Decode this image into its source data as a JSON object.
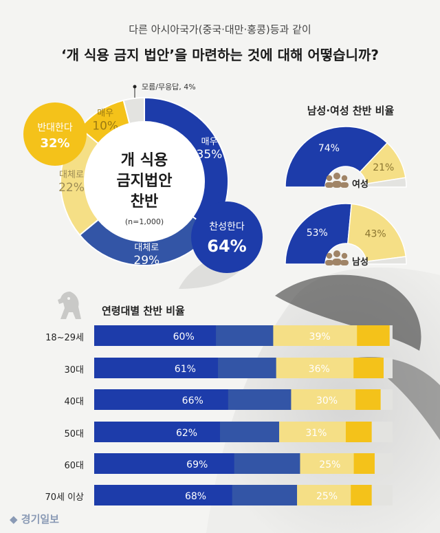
{
  "header": {
    "subtitle": "다른 아시아국가(중국·대만·홍콩)등과 같이",
    "title": "‘개 식용 금지 법안’을 마련하는 것에 대해 어떻습니까?"
  },
  "donut": {
    "center_line1": "개 식용",
    "center_line2": "금지법안",
    "center_line3": "찬반",
    "n_label": "(n=1,000)",
    "support_label": "찬성한다",
    "support_value": "64%",
    "oppose_label": "반대한다",
    "oppose_value": "32%",
    "unknown_callout": "모름/무응답, 4%"
  },
  "gender": {
    "title": "남성·여성 찬반 비율",
    "female_label": "여성",
    "male_label": "남성"
  },
  "age_section": {
    "title": "연령대별 찬반 비율"
  },
  "logo": {
    "text": "경기일보"
  },
  "colors": {
    "strong_support": "#1d3caa",
    "mild_support": "#3355a6",
    "mild_oppose": "#f5df86",
    "strong_oppose": "#f4c21a",
    "unknown": "#e3e3e0",
    "background": "#f4f4f2"
  },
  "chart_data": [
    {
      "type": "pie",
      "slices": [
        {
          "name": "매우",
          "value": 35,
          "label": "매우",
          "value_label": "35%"
        },
        {
          "name": "대체로",
          "value": 29,
          "label": "대체로",
          "value_label": "29%"
        },
        {
          "name": "대체로",
          "value": 22,
          "label": "대체로",
          "value_label": "22%"
        },
        {
          "name": "매우",
          "value": 10,
          "label": "매우",
          "value_label": "10%"
        },
        {
          "name": "모름/무응답",
          "value": 4
        }
      ]
    },
    {
      "type": "pie",
      "group": "여성",
      "support": 74,
      "oppose": 21,
      "support_label": "74%",
      "oppose_label": "21%"
    },
    {
      "type": "pie",
      "group": "남성",
      "support": 53,
      "oppose": 43,
      "support_label": "53%",
      "oppose_label": "43%"
    },
    {
      "type": "bar",
      "title": "연령대별 찬반 비율",
      "categories": [
        "18~29세",
        "30대",
        "40대",
        "50대",
        "60대",
        "70세 이상"
      ],
      "series": [
        {
          "values": [
            60,
            61,
            66,
            62,
            69,
            68
          ],
          "value_labels": [
            "60%",
            "61%",
            "66%",
            "62%",
            "69%",
            "68%"
          ]
        },
        {
          "values": [
            39,
            36,
            30,
            31,
            25,
            25
          ],
          "value_labels": [
            "39%",
            "36%",
            "30%",
            "31%",
            "25%",
            "25%"
          ]
        }
      ]
    }
  ]
}
